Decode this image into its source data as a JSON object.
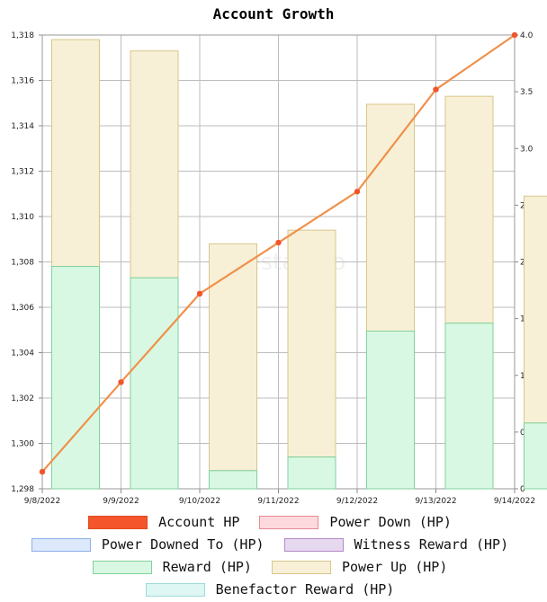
{
  "chart_data": {
    "type": "bar",
    "title": "Account Growth",
    "watermark": "hivestats.io",
    "categories": [
      "9/8/2022",
      "9/9/2022",
      "9/10/2022",
      "9/11/2022",
      "9/12/2022",
      "9/13/2022",
      "9/14/2022"
    ],
    "y_left": {
      "min": 1298,
      "max": 1318,
      "ticks": [
        "1,298",
        "1,300",
        "1,302",
        "1,304",
        "1,306",
        "1,308",
        "1,310",
        "1,312",
        "1,314",
        "1,316",
        "1,318"
      ]
    },
    "y_right": {
      "min": 0,
      "max": 4,
      "ticks": [
        "0",
        "0.5",
        "1.0",
        "1.5",
        "2.0",
        "2.5",
        "3.0",
        "3.5",
        "4.0"
      ]
    },
    "bars": [
      {
        "x": "9/8/2022",
        "reward": 1307.8,
        "total": 1317.8
      },
      {
        "x": "9/9/2022",
        "reward": 1307.3,
        "total": 1317.3
      },
      {
        "x": "9/10/2022",
        "reward": 1298.8,
        "total": 1308.8
      },
      {
        "x": "9/11/2022",
        "reward": 1299.4,
        "total": 1309.4
      },
      {
        "x": "9/12/2022",
        "reward": 1304.95,
        "total": 1314.95
      },
      {
        "x": "9/13/2022",
        "reward": 1305.3,
        "total": 1315.3
      },
      {
        "x": "9/14/2022",
        "reward": 1300.9,
        "total": 1310.9
      }
    ],
    "line": {
      "name": "Account HP",
      "points": [
        {
          "x": "9/8/2022",
          "y": 1298.75
        },
        {
          "x": "9/9/2022",
          "y": 1302.7
        },
        {
          "x": "9/10/2022",
          "y": 1306.6
        },
        {
          "x": "9/11/2022",
          "y": 1308.85
        },
        {
          "x": "9/12/2022",
          "y": 1311.1
        },
        {
          "x": "9/13/2022",
          "y": 1315.6
        },
        {
          "x": "9/14/2022",
          "y": 1318.0
        }
      ]
    },
    "series": [
      {
        "name": "Account HP",
        "fill": "#f4552a",
        "stroke": "#e04a20"
      },
      {
        "name": "Power Down (HP)",
        "fill": "#fdd8dc",
        "stroke": "#e88a96"
      },
      {
        "name": "Power Downed To (HP)",
        "fill": "#dce8fb",
        "stroke": "#8fb0e6"
      },
      {
        "name": "Witness Reward (HP)",
        "fill": "#e6d8ee",
        "stroke": "#b48ac8"
      },
      {
        "name": "Reward (HP)",
        "fill": "#d9f8e3",
        "stroke": "#7fd29b"
      },
      {
        "name": "Power Up (HP)",
        "fill": "#f7f0d6",
        "stroke": "#d8c68a"
      },
      {
        "name": "Benefactor Reward (HP)",
        "fill": "#def6f4",
        "stroke": "#9edbd5"
      }
    ],
    "line_color": "#f0904a",
    "point_color": "#f2552c",
    "grid": true,
    "legend_position": "bottom"
  }
}
